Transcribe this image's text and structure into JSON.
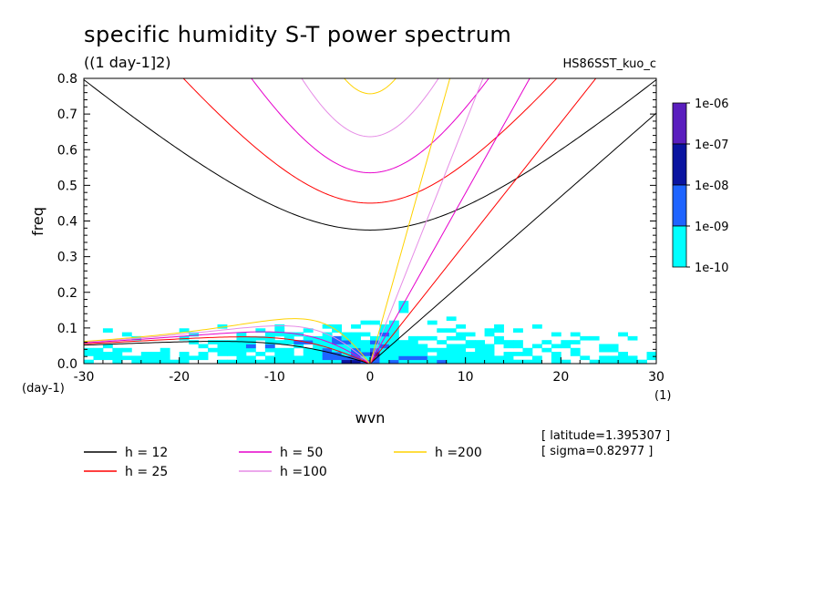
{
  "chart_data": {
    "type": "heatmap",
    "title": "specific humidity S-T power spectrum",
    "subtitle": "((1 day-1]2)",
    "run_label": "HS86SST_kuo_c",
    "xlabel": "wvn",
    "ylabel": "freq",
    "x_unit": "(1)",
    "y_unit": "(day-1)",
    "xlim": [
      -30,
      30
    ],
    "ylim": [
      0,
      0.8
    ],
    "x_ticks": [
      -30,
      -20,
      -10,
      0,
      10,
      20,
      30
    ],
    "y_ticks": [
      0.0,
      0.1,
      0.2,
      0.3,
      0.4,
      0.5,
      0.6,
      0.7,
      0.8
    ],
    "x_tick_labels": [
      "-30",
      "-20",
      "-10",
      "0",
      "10",
      "20",
      "30"
    ],
    "y_tick_labels": [
      "0.0",
      "0.1",
      "0.2",
      "0.3",
      "0.4",
      "0.5",
      "0.6",
      "0.7",
      "0.8"
    ],
    "colorbar": {
      "labels": [
        "1e-06",
        "1e-07",
        "1e-08",
        "1e-09",
        "1e-10"
      ],
      "colors": [
        "#5a1ebe",
        "#0a14a0",
        "#1e64ff",
        "#00ffff"
      ]
    },
    "series": [
      {
        "name": "h = 12",
        "h": 12,
        "color": "#000000"
      },
      {
        "name": "h = 25",
        "h": 25,
        "color": "#ff0000"
      },
      {
        "name": "h = 50",
        "h": 50,
        "color": "#e600cc"
      },
      {
        "name": "h =100",
        "h": 100,
        "color": "#e68ce6"
      },
      {
        "name": "h =200",
        "h": 200,
        "color": "#ffd200"
      }
    ],
    "annotations": [
      "[ latitude=1.395307 ]",
      "[ sigma=0.82977 ]"
    ]
  }
}
